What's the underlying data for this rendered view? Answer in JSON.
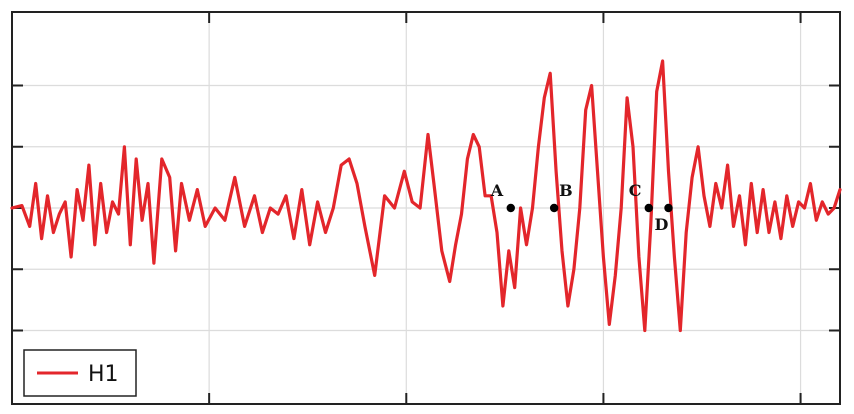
{
  "colors": {
    "series": "#e3262b",
    "axis": "#222222",
    "grid": "#dcdcdc",
    "marker": "#000000",
    "background": "#ffffff"
  },
  "chart_data": {
    "type": "line",
    "title": "",
    "xlabel": "",
    "ylabel": "",
    "xlim": [
      0,
      4.2
    ],
    "ylim": [
      -1.6,
      1.6
    ],
    "xticks": [
      1,
      2,
      3,
      4
    ],
    "yticks": [
      -1,
      -0.5,
      0,
      0.5,
      1
    ],
    "grid": true,
    "legend": {
      "placement": "bottom-left",
      "entries": [
        "H1"
      ]
    },
    "series": [
      {
        "name": "H1",
        "x": [
          0.0,
          0.05,
          0.09,
          0.12,
          0.15,
          0.18,
          0.21,
          0.24,
          0.27,
          0.3,
          0.33,
          0.36,
          0.39,
          0.42,
          0.45,
          0.48,
          0.51,
          0.54,
          0.57,
          0.6,
          0.63,
          0.66,
          0.69,
          0.72,
          0.76,
          0.8,
          0.83,
          0.86,
          0.9,
          0.94,
          0.98,
          1.03,
          1.08,
          1.13,
          1.18,
          1.23,
          1.27,
          1.31,
          1.35,
          1.39,
          1.43,
          1.47,
          1.51,
          1.55,
          1.59,
          1.63,
          1.67,
          1.71,
          1.75,
          1.79,
          1.84,
          1.89,
          1.94,
          1.99,
          2.03,
          2.07,
          2.11,
          2.14,
          2.18,
          2.22,
          2.25,
          2.28,
          2.31,
          2.34,
          2.37,
          2.4,
          2.43,
          2.46,
          2.49,
          2.52,
          2.55,
          2.58,
          2.61,
          2.64,
          2.67,
          2.7,
          2.73,
          2.76,
          2.79,
          2.82,
          2.85,
          2.88,
          2.91,
          2.94,
          2.97,
          3.0,
          3.03,
          3.06,
          3.09,
          3.12,
          3.15,
          3.18,
          3.21,
          3.24,
          3.27,
          3.3,
          3.33,
          3.36,
          3.39,
          3.42,
          3.45,
          3.48,
          3.51,
          3.54,
          3.57,
          3.6,
          3.63,
          3.66,
          3.69,
          3.72,
          3.75,
          3.78,
          3.81,
          3.84,
          3.87,
          3.9,
          3.93,
          3.96,
          3.99,
          4.02,
          4.05,
          4.08,
          4.11,
          4.14,
          4.17,
          4.2
        ],
        "y": [
          0.0,
          0.02,
          -0.15,
          0.2,
          -0.25,
          0.1,
          -0.2,
          -0.05,
          0.05,
          -0.4,
          0.15,
          -0.1,
          0.35,
          -0.3,
          0.2,
          -0.2,
          0.05,
          -0.05,
          0.5,
          -0.3,
          0.4,
          -0.1,
          0.2,
          -0.45,
          0.4,
          0.25,
          -0.35,
          0.2,
          -0.1,
          0.15,
          -0.15,
          0.0,
          -0.1,
          0.25,
          -0.15,
          0.1,
          -0.2,
          0.0,
          -0.05,
          0.1,
          -0.25,
          0.15,
          -0.3,
          0.05,
          -0.2,
          0.0,
          0.35,
          0.4,
          0.2,
          -0.15,
          -0.55,
          0.1,
          0.0,
          0.3,
          0.05,
          0.0,
          0.6,
          0.2,
          -0.35,
          -0.6,
          -0.3,
          -0.05,
          0.4,
          0.6,
          0.5,
          0.1,
          0.1,
          -0.2,
          -0.8,
          -0.35,
          -0.65,
          0.0,
          -0.3,
          0.0,
          0.5,
          0.9,
          1.1,
          0.3,
          -0.35,
          -0.8,
          -0.5,
          0.0,
          0.8,
          1.0,
          0.3,
          -0.4,
          -0.95,
          -0.55,
          0.0,
          0.9,
          0.5,
          -0.4,
          -1.0,
          -0.15,
          0.95,
          1.2,
          0.3,
          -0.4,
          -1.0,
          -0.2,
          0.25,
          0.5,
          0.1,
          -0.15,
          0.2,
          0.0,
          0.35,
          -0.15,
          0.1,
          -0.3,
          0.2,
          -0.2,
          0.15,
          -0.2,
          0.05,
          -0.25,
          0.1,
          -0.15,
          0.05,
          0.0,
          0.2,
          -0.1,
          0.05,
          -0.05,
          0.0,
          0.15
        ],
        "color": "#e3262b"
      }
    ],
    "annotations": [
      {
        "label": "A",
        "x": 2.53,
        "y": 0.0
      },
      {
        "label": "B",
        "x": 2.75,
        "y": 0.0
      },
      {
        "label": "C",
        "x": 3.23,
        "y": 0.0
      },
      {
        "label": "D",
        "x": 3.33,
        "y": 0.0
      }
    ]
  }
}
